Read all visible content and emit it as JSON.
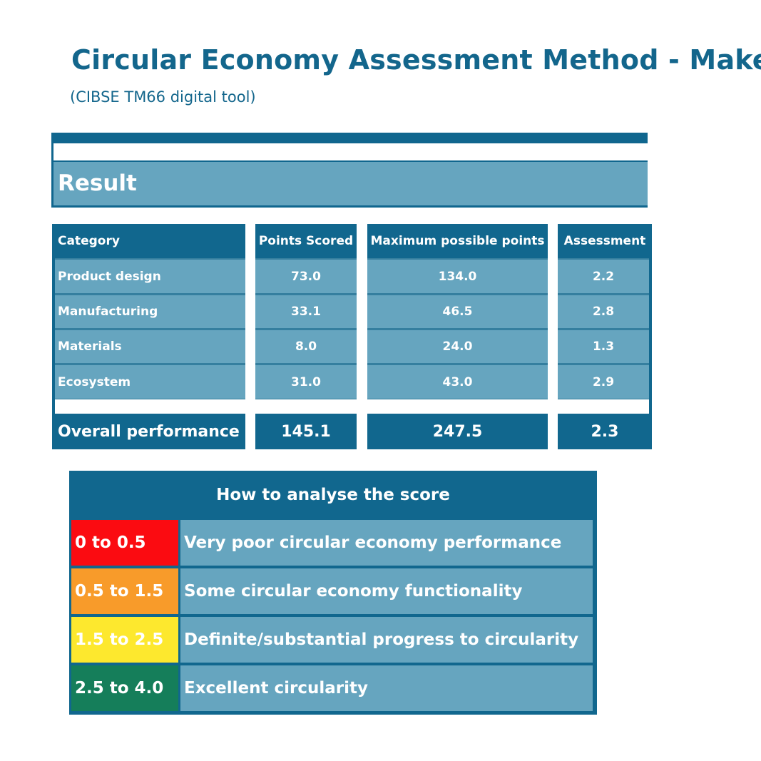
{
  "header": {
    "title": "Circular Economy Assessment Method - Make",
    "subtitle": "(CIBSE TM66 digital tool)"
  },
  "result": {
    "label": "Result"
  },
  "table": {
    "columns": [
      "Category",
      "Points Scored",
      "Maximum possible points",
      "Assessment"
    ],
    "rows": [
      [
        "Product design",
        "73.0",
        "134.0",
        "2.2"
      ],
      [
        "Manufacturing",
        "33.1",
        "46.5",
        "2.8"
      ],
      [
        "Materials",
        "8.0",
        "24.0",
        "1.3"
      ],
      [
        "Ecosystem",
        "31.0",
        "43.0",
        "2.9"
      ]
    ],
    "overall": [
      "Overall performance",
      "145.1",
      "247.5",
      "2.3"
    ]
  },
  "legend": {
    "title": "How to analyse the score",
    "items": [
      {
        "range": "0 to 0.5",
        "description": "Very poor circular economy performance",
        "color": "#fb0b11"
      },
      {
        "range": "0.5 to 1.5",
        "description": "Some circular economy functionality",
        "color": "#f89b2a"
      },
      {
        "range": "1.5 to 2.5",
        "description": "Definite/substantial progress to circularity",
        "color": "#fde82e"
      },
      {
        "range": "2.5 to 4.0",
        "description": "Excellent circularity",
        "color": "#157e5a"
      }
    ]
  },
  "colors": {
    "dark_blue": "#11678e",
    "light_blue": "#66a5bf",
    "title_blue": "#13668c"
  }
}
